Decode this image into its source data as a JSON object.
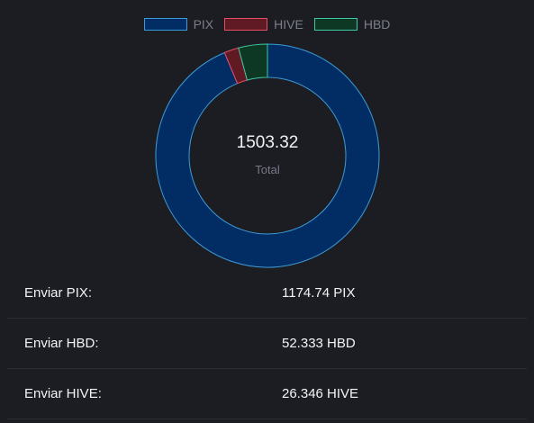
{
  "chart_data": {
    "type": "pie",
    "categories": [
      "PIX",
      "HIVE",
      "HBD"
    ],
    "values": [
      1174.74,
      26.346,
      52.333
    ],
    "series": [
      {
        "name": "PIX",
        "value": 1174.74,
        "fill": "#012c64",
        "stroke": "#3c9bd7"
      },
      {
        "name": "HIVE",
        "value": 26.346,
        "fill": "#5f1a24",
        "stroke": "#e54f63"
      },
      {
        "name": "HBD",
        "value": 52.333,
        "fill": "#0c3824",
        "stroke": "#3fc6a3"
      }
    ],
    "center_value": "1503.32",
    "center_label": "Total",
    "legend_position": "top-center"
  },
  "legend": [
    {
      "label": "PIX"
    },
    {
      "label": "HIVE"
    },
    {
      "label": "HBD"
    }
  ],
  "rows": [
    {
      "label": "Enviar PIX:",
      "value": "1174.74 PIX"
    },
    {
      "label": "Enviar HBD:",
      "value": "52.333 HBD"
    },
    {
      "label": "Enviar HIVE:",
      "value": "26.346 HIVE"
    }
  ],
  "colors": {
    "background": "#1c1d23",
    "divider": "#2b2c33",
    "muted_text": "#7c7f8a"
  }
}
